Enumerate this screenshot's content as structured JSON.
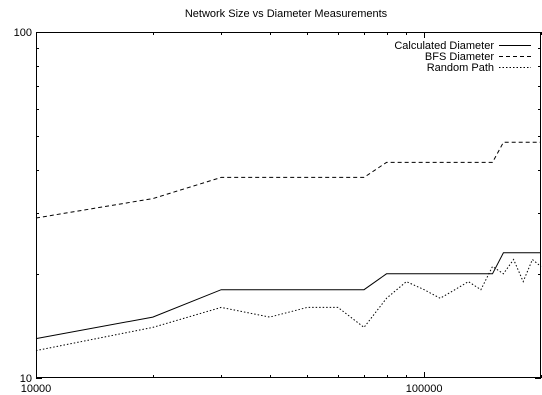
{
  "chart_data": {
    "type": "line",
    "title": "Network Size vs Diameter Measurements",
    "xlabel": "",
    "ylabel": "",
    "xscale": "log",
    "yscale": "log",
    "xlim": [
      10000,
      200000
    ],
    "ylim": [
      10,
      100
    ],
    "x_ticks": [
      {
        "value": 10000,
        "label": "10000"
      },
      {
        "value": 100000,
        "label": "100000"
      }
    ],
    "y_ticks": [
      {
        "value": 10,
        "label": "10"
      },
      {
        "value": 100,
        "label": "100"
      }
    ],
    "grid": false,
    "legend_position": "top-right",
    "series": [
      {
        "name": "Calculated Diameter",
        "line_style": "solid",
        "x": [
          10000,
          20000,
          30000,
          40000,
          50000,
          60000,
          70000,
          80000,
          90000,
          100000,
          120000,
          150000,
          160000,
          200000
        ],
        "y": [
          13,
          15,
          18,
          18,
          18,
          18,
          18,
          20,
          20,
          20,
          20,
          20,
          23,
          23
        ]
      },
      {
        "name": "BFS Diameter",
        "line_style": "dashed",
        "x": [
          10000,
          20000,
          30000,
          40000,
          50000,
          60000,
          70000,
          80000,
          90000,
          100000,
          120000,
          150000,
          160000,
          200000
        ],
        "y": [
          29,
          33,
          38,
          38,
          38,
          38,
          38,
          42,
          42,
          42,
          42,
          42,
          48,
          48
        ]
      },
      {
        "name": "Random Path",
        "line_style": "dotted",
        "x": [
          10000,
          20000,
          30000,
          40000,
          50000,
          60000,
          70000,
          80000,
          90000,
          100000,
          110000,
          120000,
          130000,
          140000,
          150000,
          160000,
          170000,
          180000,
          190000,
          200000
        ],
        "y": [
          12,
          14,
          16,
          15,
          16,
          16,
          14,
          17,
          19,
          18,
          17,
          18,
          19,
          18,
          21,
          20,
          22,
          19,
          22,
          21
        ]
      }
    ]
  }
}
